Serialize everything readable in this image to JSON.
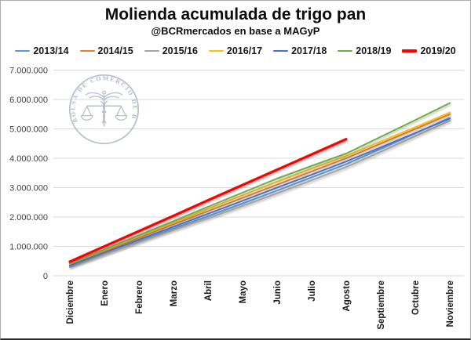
{
  "header": {
    "title": "Molienda acumulada de trigo pan",
    "subtitle": "@BCRmercados en base a MAGyP"
  },
  "watermark": {
    "text": "BOLSA DE COMERCIO DE ROSARIO",
    "color": "#b0bac9"
  },
  "colors": {
    "gridline": "#d9d9d9",
    "y_tick_text": "#404040",
    "x_tick_text": "#1a1a1a"
  },
  "chart_data": {
    "type": "line",
    "title": "Molienda acumulada de trigo pan",
    "subtitle": "@BCRmercados en base a MAGyP",
    "grid": true,
    "legend_position": "top",
    "ylim": [
      0,
      7000000
    ],
    "ytick_step": 1000000,
    "y_tick_labels": [
      "0",
      "1.000.000",
      "2.000.000",
      "3.000.000",
      "4.000.000",
      "5.000.000",
      "6.000.000",
      "7.000.000"
    ],
    "categories": [
      "Diciembre",
      "Enero",
      "Febrero",
      "Marzo",
      "Abril",
      "Mayo",
      "Junio",
      "Julio",
      "Agosto",
      "Septiembre",
      "Octubre",
      "Noviembre"
    ],
    "series": [
      {
        "name": "2013/14",
        "color": "#5B9BD5",
        "width": 2,
        "values": [
          300000,
          740000,
          1180000,
          1610000,
          2030000,
          2460000,
          2900000,
          3350000,
          3800000,
          4320000,
          4850000,
          5380000
        ]
      },
      {
        "name": "2014/15",
        "color": "#ED7D31",
        "width": 2,
        "values": [
          380000,
          840000,
          1290000,
          1750000,
          2200000,
          2650000,
          3100000,
          3550000,
          4000000,
          4500000,
          5000000,
          5500000
        ]
      },
      {
        "name": "2015/16",
        "color": "#A5A5A5",
        "width": 2,
        "values": [
          330000,
          740000,
          1150000,
          1560000,
          1960000,
          2380000,
          2810000,
          3250000,
          3700000,
          4220000,
          4750000,
          5280000
        ]
      },
      {
        "name": "2016/17",
        "color": "#FFC000",
        "width": 2,
        "values": [
          400000,
          870000,
          1340000,
          1810000,
          2280000,
          2740000,
          3200000,
          3650000,
          4080000,
          4570000,
          5060000,
          5560000
        ]
      },
      {
        "name": "2017/18",
        "color": "#4472C4",
        "width": 2,
        "values": [
          350000,
          790000,
          1230000,
          1670000,
          2110000,
          2550000,
          3000000,
          3440000,
          3890000,
          4370000,
          4860000,
          5350000
        ]
      },
      {
        "name": "2018/19",
        "color": "#70AD47",
        "width": 2,
        "values": [
          420000,
          900000,
          1380000,
          1860000,
          2350000,
          2830000,
          3310000,
          3740000,
          4160000,
          4730000,
          5300000,
          5880000
        ]
      },
      {
        "name": "2019/20",
        "color": "#FF0000",
        "width": 3.2,
        "values": [
          480000,
          1000000,
          1520000,
          2040000,
          2570000,
          3090000,
          3610000,
          4130000,
          4650000
        ]
      }
    ]
  }
}
